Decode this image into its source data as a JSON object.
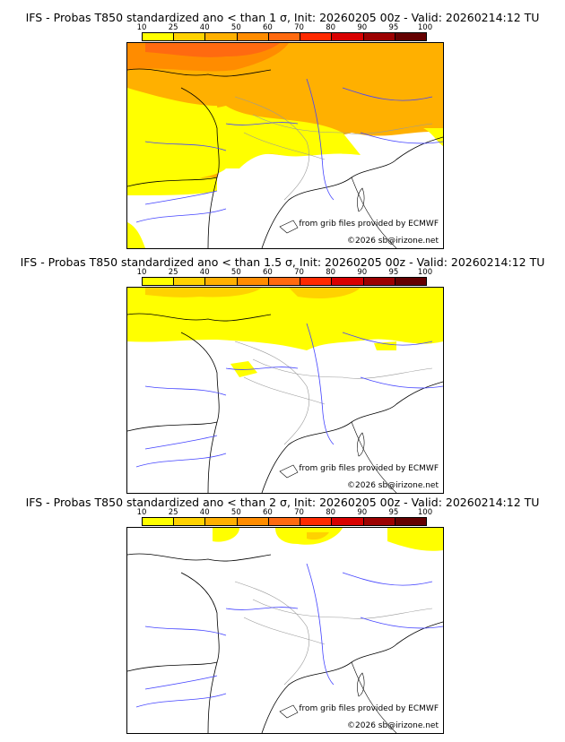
{
  "colorbar": {
    "ticks": [
      "10",
      "25",
      "40",
      "50",
      "60",
      "70",
      "80",
      "90",
      "95",
      "100"
    ],
    "colors": [
      "#ffff00",
      "#ffd200",
      "#ffb000",
      "#ff8c00",
      "#ff6a10",
      "#ff2a00",
      "#d80000",
      "#9c0000",
      "#640000"
    ]
  },
  "panels": [
    {
      "title": "IFS - Probas T850  standardized ano < than 1 σ, Init: 20260205 00z - Valid: 20260214:12 TU",
      "level": 1
    },
    {
      "title": "IFS - Probas T850  standardized ano < than 1.5 σ, Init: 20260205 00z - Valid: 20260214:12 TU",
      "level": 2
    },
    {
      "title": "IFS - Probas T850  standardized ano < than 2 σ, Init: 20260205 00z - Valid: 20260214:12 TU",
      "level": 3
    }
  ],
  "credits": {
    "source": "from grib files provided by ECMWF",
    "copyright": "©2026 sb@irizone.net"
  }
}
